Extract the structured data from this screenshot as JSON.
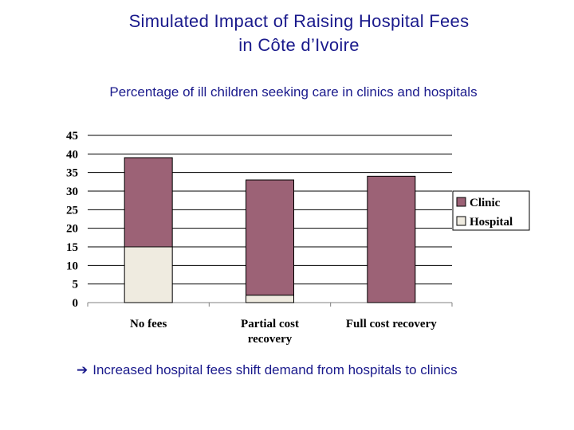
{
  "header": {
    "title_line1": "Simulated Impact of Raising Hospital Fees",
    "title_line2": "in Côte d’Ivoire",
    "subtitle": "Percentage of ill children seeking care in clinics and hospitals"
  },
  "note": {
    "arrow_icon": "right-arrow-icon",
    "text": "Increased hospital fees shift demand from hospitals to clinics"
  },
  "colors": {
    "clinic": "#9c6276",
    "hospital": "#efebe0",
    "title": "#1a1a8c"
  },
  "chart_data": {
    "type": "bar",
    "stacked": true,
    "categories": [
      [
        "No fees"
      ],
      [
        "Partial cost",
        "recovery"
      ],
      [
        "Full cost recovery"
      ]
    ],
    "series": [
      {
        "name": "Hospital",
        "values": [
          15,
          2,
          0
        ]
      },
      {
        "name": "Clinic",
        "values": [
          24,
          31,
          34
        ]
      }
    ],
    "ylim": [
      0,
      45
    ],
    "yticks": [
      0,
      5,
      10,
      15,
      20,
      25,
      30,
      35,
      40,
      45
    ],
    "grid": true,
    "legend": "right",
    "legend_order": [
      "Clinic",
      "Hospital"
    ]
  }
}
